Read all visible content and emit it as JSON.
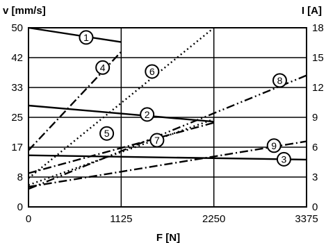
{
  "chart_data": {
    "type": "line",
    "xlabel": "F [N]",
    "ylabel_left": "v [mm/s]",
    "ylabel_right": "I [A]",
    "x_ticks": [
      "0",
      "1125",
      "2250",
      "3375"
    ],
    "x_tick_values": [
      0,
      1125,
      2250,
      3375
    ],
    "y_left_ticks": [
      "0",
      "8",
      "17",
      "25",
      "33",
      "42",
      "50"
    ],
    "y_left_tick_values": [
      0,
      8.33,
      16.67,
      25,
      33.33,
      41.67,
      50
    ],
    "y_right_ticks": [
      "0",
      "3",
      "6",
      "9",
      "12",
      "15",
      "18"
    ],
    "y_right_tick_values": [
      0,
      3,
      6,
      9,
      12,
      15,
      18
    ],
    "xlim": [
      0,
      3375
    ],
    "ylim_left": [
      0,
      50
    ],
    "ylim_right": [
      0,
      18
    ],
    "grid": true,
    "series": [
      {
        "name": "1",
        "style": "solid",
        "points": [
          [
            0,
            50.0
          ],
          [
            1125,
            46.0
          ]
        ]
      },
      {
        "name": "2",
        "style": "solid",
        "points": [
          [
            0,
            28.3
          ],
          [
            2250,
            23.8
          ]
        ]
      },
      {
        "name": "3",
        "style": "solid",
        "points": [
          [
            0,
            14.4
          ],
          [
            3375,
            13.2
          ]
        ]
      },
      {
        "name": "4",
        "style": "dash-dot",
        "points": [
          [
            0,
            15.8
          ],
          [
            1125,
            43.3
          ]
        ]
      },
      {
        "name": "5",
        "style": "dash-dot",
        "points": [
          [
            0,
            9.4
          ],
          [
            2250,
            23.5
          ]
        ]
      },
      {
        "name": "6",
        "style": "dotted",
        "points": [
          [
            0,
            8.0
          ],
          [
            2250,
            50.0
          ]
        ]
      },
      {
        "name": "7",
        "style": "dotted",
        "points": [
          [
            0,
            6.1
          ],
          [
            2250,
            24.5
          ]
        ]
      },
      {
        "name": "8",
        "style": "dash-dot-dot",
        "points": [
          [
            0,
            5.0
          ],
          [
            3375,
            36.7
          ]
        ]
      },
      {
        "name": "9",
        "style": "dash-dot",
        "points": [
          [
            0,
            5.6
          ],
          [
            3375,
            18.3
          ]
        ]
      }
    ],
    "annotations": [
      {
        "label": "1",
        "x": 700,
        "y": 47.3
      },
      {
        "label": "4",
        "x": 900,
        "y": 38.9
      },
      {
        "label": "6",
        "x": 1500,
        "y": 37.8
      },
      {
        "label": "8",
        "x": 3050,
        "y": 35.3
      },
      {
        "label": "2",
        "x": 1440,
        "y": 25.8
      },
      {
        "label": "5",
        "x": 950,
        "y": 20.5
      },
      {
        "label": "7",
        "x": 1560,
        "y": 18.6
      },
      {
        "label": "9",
        "x": 2980,
        "y": 17.1
      },
      {
        "label": "3",
        "x": 3100,
        "y": 13.3
      }
    ]
  }
}
